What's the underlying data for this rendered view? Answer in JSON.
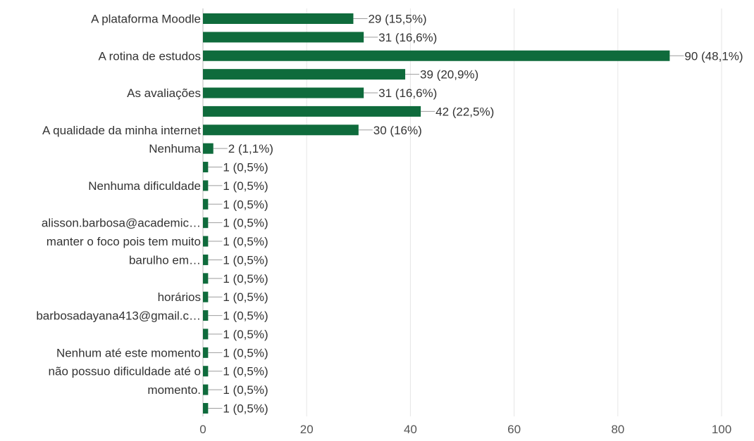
{
  "chart_data": {
    "type": "bar",
    "orientation": "horizontal",
    "bar_color": "#0f6b3c",
    "gridline_color": "#e6e6e6",
    "axis_color": "#bdbdbd",
    "text_color": "#333333",
    "value_label_color": "#333333",
    "xlim": [
      0,
      100
    ],
    "x_ticks": [
      0,
      20,
      40,
      60,
      80,
      100
    ],
    "grid": true,
    "categories": [
      {
        "label": "A plataforma Moodle",
        "value": 29,
        "value_label": "29 (15,5%)"
      },
      {
        "label": "",
        "value": 31,
        "value_label": "31 (16,6%)"
      },
      {
        "label": "A rotina de estudos",
        "value": 90,
        "value_label": "90 (48,1%)"
      },
      {
        "label": "",
        "value": 39,
        "value_label": "39 (20,9%)"
      },
      {
        "label": "As avaliações",
        "value": 31,
        "value_label": "31 (16,6%)"
      },
      {
        "label": "",
        "value": 42,
        "value_label": "42 (22,5%)"
      },
      {
        "label": "A qualidade da minha internet",
        "value": 30,
        "value_label": "30 (16%)"
      },
      {
        "label": "Nenhuma",
        "value": 2,
        "value_label": "2 (1,1%)"
      },
      {
        "label": "",
        "value": 1,
        "value_label": "1 (0,5%)"
      },
      {
        "label": "Nenhuma dificuldade",
        "value": 1,
        "value_label": "1 (0,5%)"
      },
      {
        "label": "",
        "value": 1,
        "value_label": "1 (0,5%)"
      },
      {
        "label": "alisson.barbosa@academic…",
        "value": 1,
        "value_label": "1 (0,5%)"
      },
      {
        "label": "manter o foco pois tem muito",
        "value": 1,
        "value_label": "1 (0,5%)"
      },
      {
        "label": "barulho em…",
        "value": 1,
        "value_label": "1 (0,5%)"
      },
      {
        "label": "",
        "value": 1,
        "value_label": "1 (0,5%)"
      },
      {
        "label": "horários",
        "value": 1,
        "value_label": "1 (0,5%)"
      },
      {
        "label": "barbosadayana413@gmail.c…",
        "value": 1,
        "value_label": "1 (0,5%)"
      },
      {
        "label": "",
        "value": 1,
        "value_label": "1 (0,5%)"
      },
      {
        "label": "Nenhum até este momento",
        "value": 1,
        "value_label": "1 (0,5%)"
      },
      {
        "label": "não possuo dificuldade até o",
        "value": 1,
        "value_label": "1 (0,5%)"
      },
      {
        "label": "momento.",
        "value": 1,
        "value_label": "1 (0,5%)"
      },
      {
        "label": "",
        "value": 1,
        "value_label": "1 (0,5%)"
      }
    ]
  }
}
